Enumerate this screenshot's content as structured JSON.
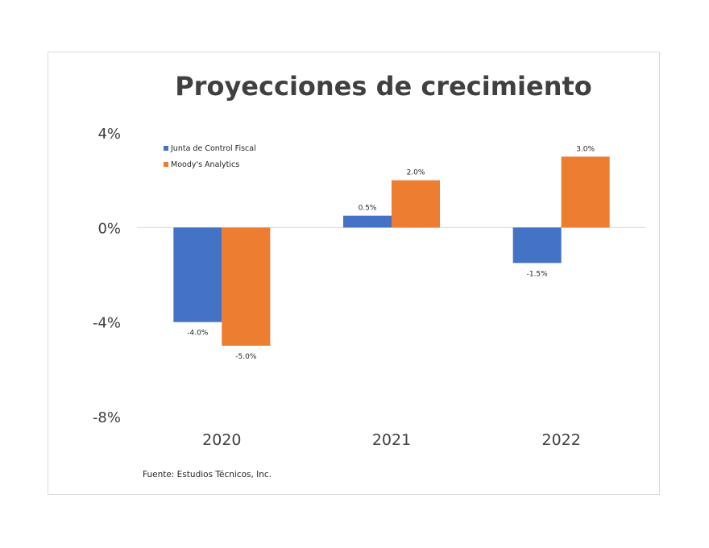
{
  "chart_data": {
    "type": "bar",
    "title": "Proyecciones de crecimiento",
    "xlabel": "",
    "ylabel": "",
    "categories": [
      "2020",
      "2021",
      "2022"
    ],
    "ylim": [
      -8,
      4
    ],
    "yticks": [
      {
        "value": 4,
        "label": "4%"
      },
      {
        "value": 0,
        "label": "0%"
      },
      {
        "value": -4,
        "label": "-4%"
      },
      {
        "value": -8,
        "label": "-8%"
      }
    ],
    "grid": false,
    "zero_line": true,
    "legend_position": "top-left",
    "series": [
      {
        "name": "Junta de Control Fiscal",
        "color": "#4472c4",
        "values": [
          -4.0,
          0.5,
          -1.5
        ],
        "labels": [
          "-4.0%",
          "0.5%",
          "-1.5%"
        ]
      },
      {
        "name": "Moody's Analytics",
        "color": "#ed7d31",
        "values": [
          -5.0,
          2.0,
          3.0
        ],
        "labels": [
          "-5.0%",
          "2.0%",
          "3.0%"
        ]
      }
    ],
    "source_note": "Fuente: Estudios Técnicos, Inc."
  }
}
